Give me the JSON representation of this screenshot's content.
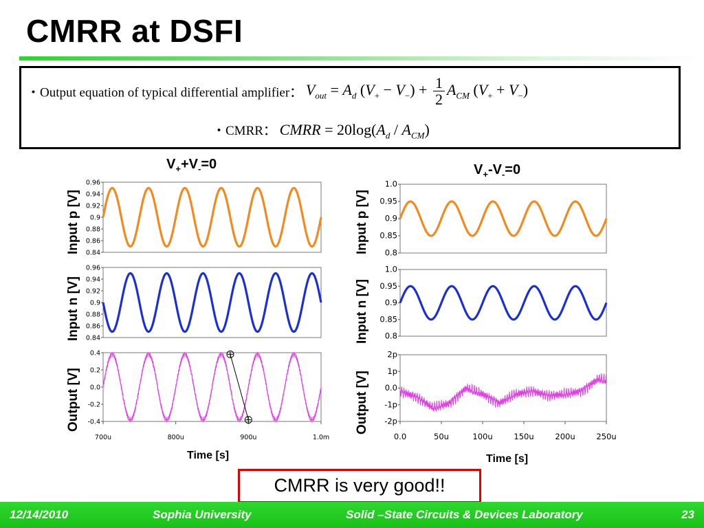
{
  "slide": {
    "title": "CMRR at DSFI",
    "bullet1_label": "・Output equation  of typical differential amplifier：",
    "bullet2_label": "・CMRR：",
    "note": "CMRR is very good!!"
  },
  "footer": {
    "date": "12/14/2010",
    "university": "Sophia University",
    "lab": "Solid –State Circuits & Devices Laboratory",
    "page": "23"
  },
  "colors": {
    "orange": "#f28a1e",
    "blue": "#1a2fd8",
    "magenta": "#e23ce6",
    "accent_green": "#22cc22",
    "note_border": "#e00000"
  },
  "chart_data": [
    {
      "type": "line",
      "panel": "left-input-p",
      "condition": "V++V-=0",
      "ylabel": "Input p [V]",
      "xlim": [
        0.0007,
        0.001
      ],
      "ylim": [
        0.84,
        0.96
      ],
      "yticks": [
        "0.96",
        "0.94",
        "0.92",
        "0.9",
        "0.88",
        "0.86",
        "0.84"
      ],
      "series": [
        {
          "color": "orange",
          "offset": 0.9,
          "amplitude": 0.05,
          "frequency_hz": 20000,
          "phase": 0
        }
      ]
    },
    {
      "type": "line",
      "panel": "left-input-n",
      "condition": "V++V-=0",
      "ylabel": "Input n [V]",
      "xlim": [
        0.0007,
        0.001
      ],
      "ylim": [
        0.84,
        0.96
      ],
      "yticks": [
        "0.96",
        "0.94",
        "0.92",
        "0.9",
        "0.88",
        "0.86",
        "0.84"
      ],
      "series": [
        {
          "color": "blue",
          "offset": 0.9,
          "amplitude": 0.05,
          "frequency_hz": 20000,
          "phase": 3.1416
        }
      ]
    },
    {
      "type": "line",
      "panel": "left-output",
      "condition": "V++V-=0",
      "ylabel": "Output [V]",
      "xlabel": "Time [s]",
      "xlim": [
        0.0007,
        0.001
      ],
      "ylim": [
        -0.42,
        0.42
      ],
      "yticks": [
        "0.4",
        "0.2",
        "0.0",
        "-0.2",
        "-0.4"
      ],
      "xticks": [
        "700u",
        "800u",
        "900u",
        "1.0m"
      ],
      "series": [
        {
          "color": "magenta",
          "offset": 0.0,
          "amplitude": 0.4,
          "frequency_hz": 20000,
          "phase": 0
        }
      ],
      "markers": [
        {
          "x": 0.000875,
          "y": 0.4
        },
        {
          "x": 0.0009,
          "y": -0.4
        }
      ]
    },
    {
      "type": "line",
      "panel": "right-input-p",
      "condition": "V+-V-=0",
      "ylabel": "Input p [V]",
      "xlim": [
        0,
        0.00025
      ],
      "ylim": [
        0.8,
        1.0
      ],
      "yticks": [
        "1.0",
        "0.95",
        "0.9",
        "0.85",
        "0.8"
      ],
      "series": [
        {
          "color": "orange",
          "offset": 0.9,
          "amplitude": 0.05,
          "frequency_hz": 20000,
          "phase": 0
        }
      ]
    },
    {
      "type": "line",
      "panel": "right-input-n",
      "condition": "V+-V-=0",
      "ylabel": "Input n [V]",
      "xlim": [
        0,
        0.00025
      ],
      "ylim": [
        0.8,
        1.0
      ],
      "yticks": [
        "1.0",
        "0.95",
        "0.9",
        "0.85",
        "0.8"
      ],
      "series": [
        {
          "color": "blue",
          "offset": 0.9,
          "amplitude": 0.05,
          "frequency_hz": 20000,
          "phase": 0
        }
      ]
    },
    {
      "type": "line",
      "panel": "right-output",
      "condition": "V+-V-=0",
      "ylabel": "Output [V]",
      "xlabel": "Time [s]",
      "xlim": [
        0,
        0.00025
      ],
      "ylim": [
        -2.2e-12,
        2.2e-12
      ],
      "yticks": [
        "2p",
        "1p",
        "0.0",
        "-1p",
        "-2p"
      ],
      "xticks": [
        "0.0",
        "50u",
        "100u",
        "150u",
        "200u",
        "250u"
      ],
      "series": [
        {
          "color": "magenta",
          "name": "",
          "x": [
            0,
            2e-05,
            4e-05,
            6e-05,
            8e-05,
            0.0001,
            0.00012,
            0.00014,
            0.00016,
            0.00018,
            0.0002,
            0.00022,
            0.00024,
            0.00025
          ],
          "y": [
            -2e-13,
            -6e-13,
            -1.3e-12,
            -1e-12,
            0,
            -4e-13,
            -1e-12,
            -4e-13,
            -2e-13,
            -5e-13,
            -4e-13,
            -2e-13,
            6e-13,
            5e-13
          ]
        }
      ]
    }
  ]
}
